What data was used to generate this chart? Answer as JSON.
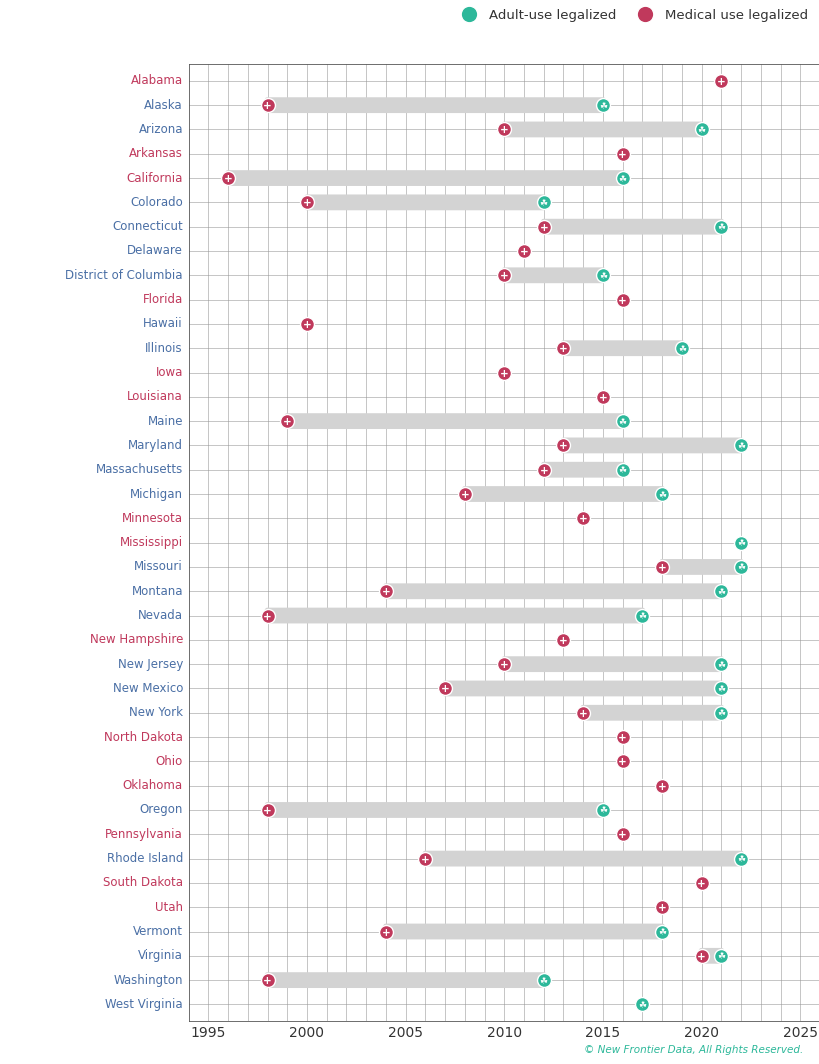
{
  "states": [
    "Alabama",
    "Alaska",
    "Arizona",
    "Arkansas",
    "California",
    "Colorado",
    "Connecticut",
    "Delaware",
    "District of Columbia",
    "Florida",
    "Hawaii",
    "Illinois",
    "Iowa",
    "Louisiana",
    "Maine",
    "Maryland",
    "Massachusetts",
    "Michigan",
    "Minnesota",
    "Mississippi",
    "Missouri",
    "Montana",
    "Nevada",
    "New Hampshire",
    "New Jersey",
    "New Mexico",
    "New York",
    "North Dakota",
    "Ohio",
    "Oklahoma",
    "Oregon",
    "Pennsylvania",
    "Rhode Island",
    "South Dakota",
    "Utah",
    "Vermont",
    "Virginia",
    "Washington",
    "West Virginia"
  ],
  "medical_year": [
    2021,
    1998,
    2010,
    2016,
    1996,
    2000,
    2012,
    2011,
    2010,
    2016,
    2000,
    2013,
    2010,
    2015,
    1999,
    2013,
    2012,
    2008,
    2014,
    null,
    2018,
    2004,
    1998,
    2013,
    2010,
    2007,
    2014,
    2016,
    2016,
    2018,
    1998,
    2016,
    2006,
    2020,
    2018,
    2004,
    2020,
    1998,
    null
  ],
  "adult_year": [
    null,
    2015,
    2020,
    null,
    2016,
    2012,
    2021,
    null,
    2015,
    null,
    null,
    2019,
    null,
    null,
    2016,
    2022,
    2016,
    2018,
    null,
    2022,
    2022,
    2021,
    2017,
    null,
    2021,
    2021,
    2021,
    null,
    null,
    null,
    2015,
    null,
    2022,
    null,
    null,
    2018,
    2021,
    2012,
    2017
  ],
  "bar_color": "#d3d3d3",
  "medical_color": "#c0395c",
  "adult_color": "#2db89a",
  "xlim_left": 1994,
  "xlim_right": 2026,
  "xticks": [
    1995,
    2000,
    2005,
    2010,
    2015,
    2020,
    2025
  ],
  "grid_color": "#888888",
  "left_bg_color": "#e8e8e8",
  "plot_bg_color": "#ffffff",
  "state_label_colors": {
    "Alabama": "#c0395c",
    "Alaska": "#4a6fa5",
    "Arizona": "#4a6fa5",
    "Arkansas": "#c0395c",
    "California": "#c0395c",
    "Colorado": "#4a6fa5",
    "Connecticut": "#4a6fa5",
    "Delaware": "#4a6fa5",
    "District of Columbia": "#4a6fa5",
    "Florida": "#c0395c",
    "Hawaii": "#4a6fa5",
    "Illinois": "#4a6fa5",
    "Iowa": "#c0395c",
    "Louisiana": "#c0395c",
    "Maine": "#4a6fa5",
    "Maryland": "#4a6fa5",
    "Massachusetts": "#4a6fa5",
    "Michigan": "#4a6fa5",
    "Minnesota": "#c0395c",
    "Mississippi": "#c0395c",
    "Missouri": "#4a6fa5",
    "Montana": "#4a6fa5",
    "Nevada": "#4a6fa5",
    "New Hampshire": "#c0395c",
    "New Jersey": "#4a6fa5",
    "New Mexico": "#4a6fa5",
    "New York": "#4a6fa5",
    "North Dakota": "#c0395c",
    "Ohio": "#c0395c",
    "Oklahoma": "#c0395c",
    "Oregon": "#4a6fa5",
    "Pennsylvania": "#c0395c",
    "Rhode Island": "#4a6fa5",
    "South Dakota": "#c0395c",
    "Utah": "#c0395c",
    "Vermont": "#4a6fa5",
    "Virginia": "#4a6fa5",
    "Washington": "#4a6fa5",
    "West Virginia": "#4a6fa5"
  },
  "legend_adult_label": "Adult-use legalized",
  "legend_medical_label": "Medical use legalized",
  "marker_size": 100,
  "bar_height": 0.35,
  "copyright_text": "© New Frontier Data, All Rights Reserved."
}
